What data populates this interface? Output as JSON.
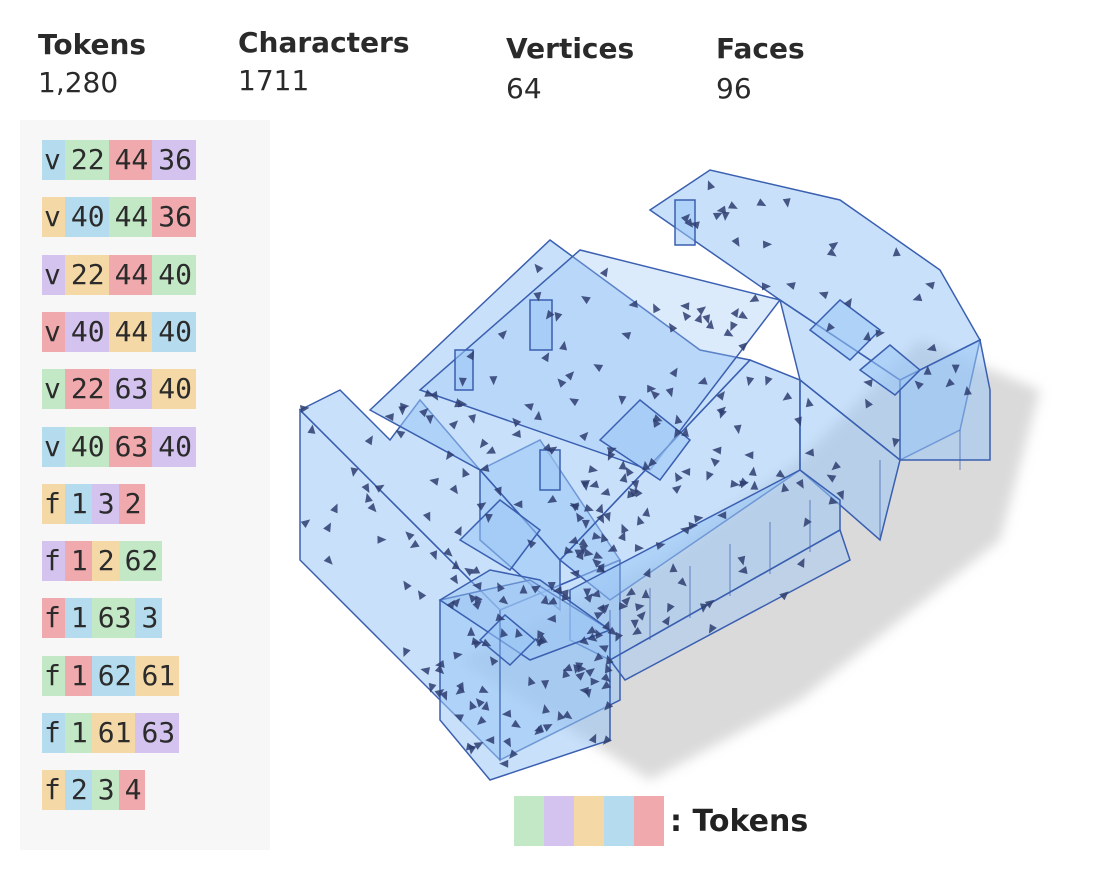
{
  "stats": [
    {
      "label": "Tokens",
      "value": "1,280"
    },
    {
      "label": "Characters",
      "value": "1711"
    },
    {
      "label": "Vertices",
      "value": "64"
    },
    {
      "label": "Faces",
      "value": "96"
    }
  ],
  "token_colors": {
    "green": "#c3e8c6",
    "purple": "#d3c3ee",
    "orange": "#f4d9a7",
    "blue": "#b4dcee",
    "red": "#f0a9ac"
  },
  "token_lines": [
    [
      [
        "v",
        "blue"
      ],
      [
        "22",
        "green"
      ],
      [
        "44",
        "red"
      ],
      [
        "36",
        "purple"
      ]
    ],
    [
      [
        "v",
        "orange"
      ],
      [
        "40",
        "blue"
      ],
      [
        "44",
        "green"
      ],
      [
        "36",
        "red"
      ]
    ],
    [
      [
        "v",
        "purple"
      ],
      [
        "22",
        "orange"
      ],
      [
        "44",
        "red"
      ],
      [
        "40",
        "green"
      ]
    ],
    [
      [
        "v",
        "red"
      ],
      [
        "40",
        "purple"
      ],
      [
        "44",
        "orange"
      ],
      [
        "40",
        "blue"
      ]
    ],
    [
      [
        "v",
        "green"
      ],
      [
        "22",
        "red"
      ],
      [
        "63",
        "purple"
      ],
      [
        "40",
        "orange"
      ]
    ],
    [
      [
        "v",
        "blue"
      ],
      [
        "40",
        "green"
      ],
      [
        "63",
        "red"
      ],
      [
        "40",
        "purple"
      ]
    ],
    [
      [
        "f",
        "orange"
      ],
      [
        "1",
        "blue"
      ],
      [
        "3",
        "purple"
      ],
      [
        "2",
        "red"
      ]
    ],
    [
      [
        "f",
        "purple"
      ],
      [
        "1",
        "red"
      ],
      [
        "2",
        "orange"
      ],
      [
        "62",
        "green"
      ]
    ],
    [
      [
        "f",
        "red"
      ],
      [
        "1",
        "blue"
      ],
      [
        "63",
        "green"
      ],
      [
        "3",
        "blue"
      ]
    ],
    [
      [
        "f",
        "green"
      ],
      [
        "1",
        "red"
      ],
      [
        "62",
        "blue"
      ],
      [
        "61",
        "orange"
      ]
    ],
    [
      [
        "f",
        "blue"
      ],
      [
        "1",
        "green"
      ],
      [
        "61",
        "orange"
      ],
      [
        "63",
        "purple"
      ]
    ],
    [
      [
        "f",
        "orange"
      ],
      [
        "2",
        "blue"
      ],
      [
        "3",
        "green"
      ],
      [
        "4",
        "red"
      ]
    ]
  ],
  "legend": {
    "text": ": Tokens",
    "swatches": [
      "green",
      "purple",
      "orange",
      "blue",
      "red"
    ]
  },
  "mesh": {
    "fill": "#9bc6f5",
    "stroke": "#3a5fb0",
    "arrow": "#2e3d70"
  }
}
